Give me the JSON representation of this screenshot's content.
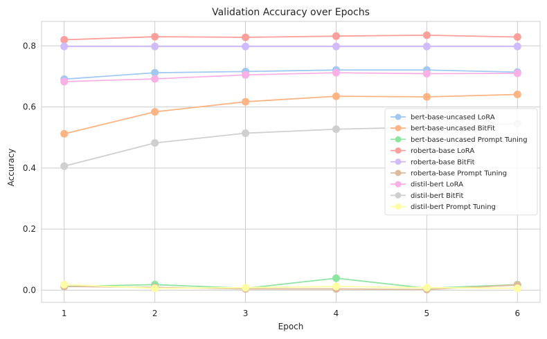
{
  "chart_data": {
    "type": "line",
    "title": "Validation Accuracy over Epochs",
    "xlabel": "Epoch",
    "ylabel": "Accuracy",
    "x": [
      1,
      2,
      3,
      4,
      5,
      6
    ],
    "xlim": [
      0.75,
      6.25
    ],
    "ylim": [
      -0.04,
      0.88
    ],
    "yticks": [
      0.0,
      0.2,
      0.4,
      0.6,
      0.8
    ],
    "yticklabels": [
      "0.0",
      "0.2",
      "0.4",
      "0.6",
      "0.8"
    ],
    "xticklabels": [
      "1",
      "2",
      "3",
      "4",
      "5",
      "6"
    ],
    "grid": true,
    "legend_position": "center-right",
    "series": [
      {
        "name": "bert-base-uncased LoRA",
        "color": "#a1c9f4",
        "values": [
          0.691,
          0.712,
          0.716,
          0.721,
          0.721,
          0.714
        ]
      },
      {
        "name": "bert-base-uncased BitFit",
        "color": "#ffb482",
        "values": [
          0.512,
          0.584,
          0.617,
          0.635,
          0.633,
          0.641
        ]
      },
      {
        "name": "bert-base-uncased Prompt Tuning",
        "color": "#8de5a1",
        "values": [
          0.012,
          0.018,
          0.006,
          0.039,
          0.006,
          0.018
        ]
      },
      {
        "name": "roberta-base LoRA",
        "color": "#ff9f9b",
        "values": [
          0.82,
          0.83,
          0.828,
          0.832,
          0.835,
          0.829
        ]
      },
      {
        "name": "roberta-base BitFit",
        "color": "#d0bbff",
        "values": [
          0.798,
          0.798,
          0.798,
          0.798,
          0.798,
          0.798
        ]
      },
      {
        "name": "roberta-base Prompt Tuning",
        "color": "#debb9b",
        "values": [
          0.012,
          0.009,
          0.004,
          0.004,
          0.002,
          0.017
        ]
      },
      {
        "name": "distil-bert LoRA",
        "color": "#fab0e4",
        "values": [
          0.683,
          0.692,
          0.705,
          0.712,
          0.709,
          0.71
        ]
      },
      {
        "name": "distil-bert BitFit",
        "color": "#cfcfcf",
        "values": [
          0.406,
          0.482,
          0.514,
          0.527,
          0.534,
          0.545
        ]
      },
      {
        "name": "distil-bert Prompt Tuning",
        "color": "#fffea3",
        "values": [
          0.018,
          0.006,
          0.008,
          0.012,
          0.008,
          0.006
        ]
      }
    ]
  }
}
